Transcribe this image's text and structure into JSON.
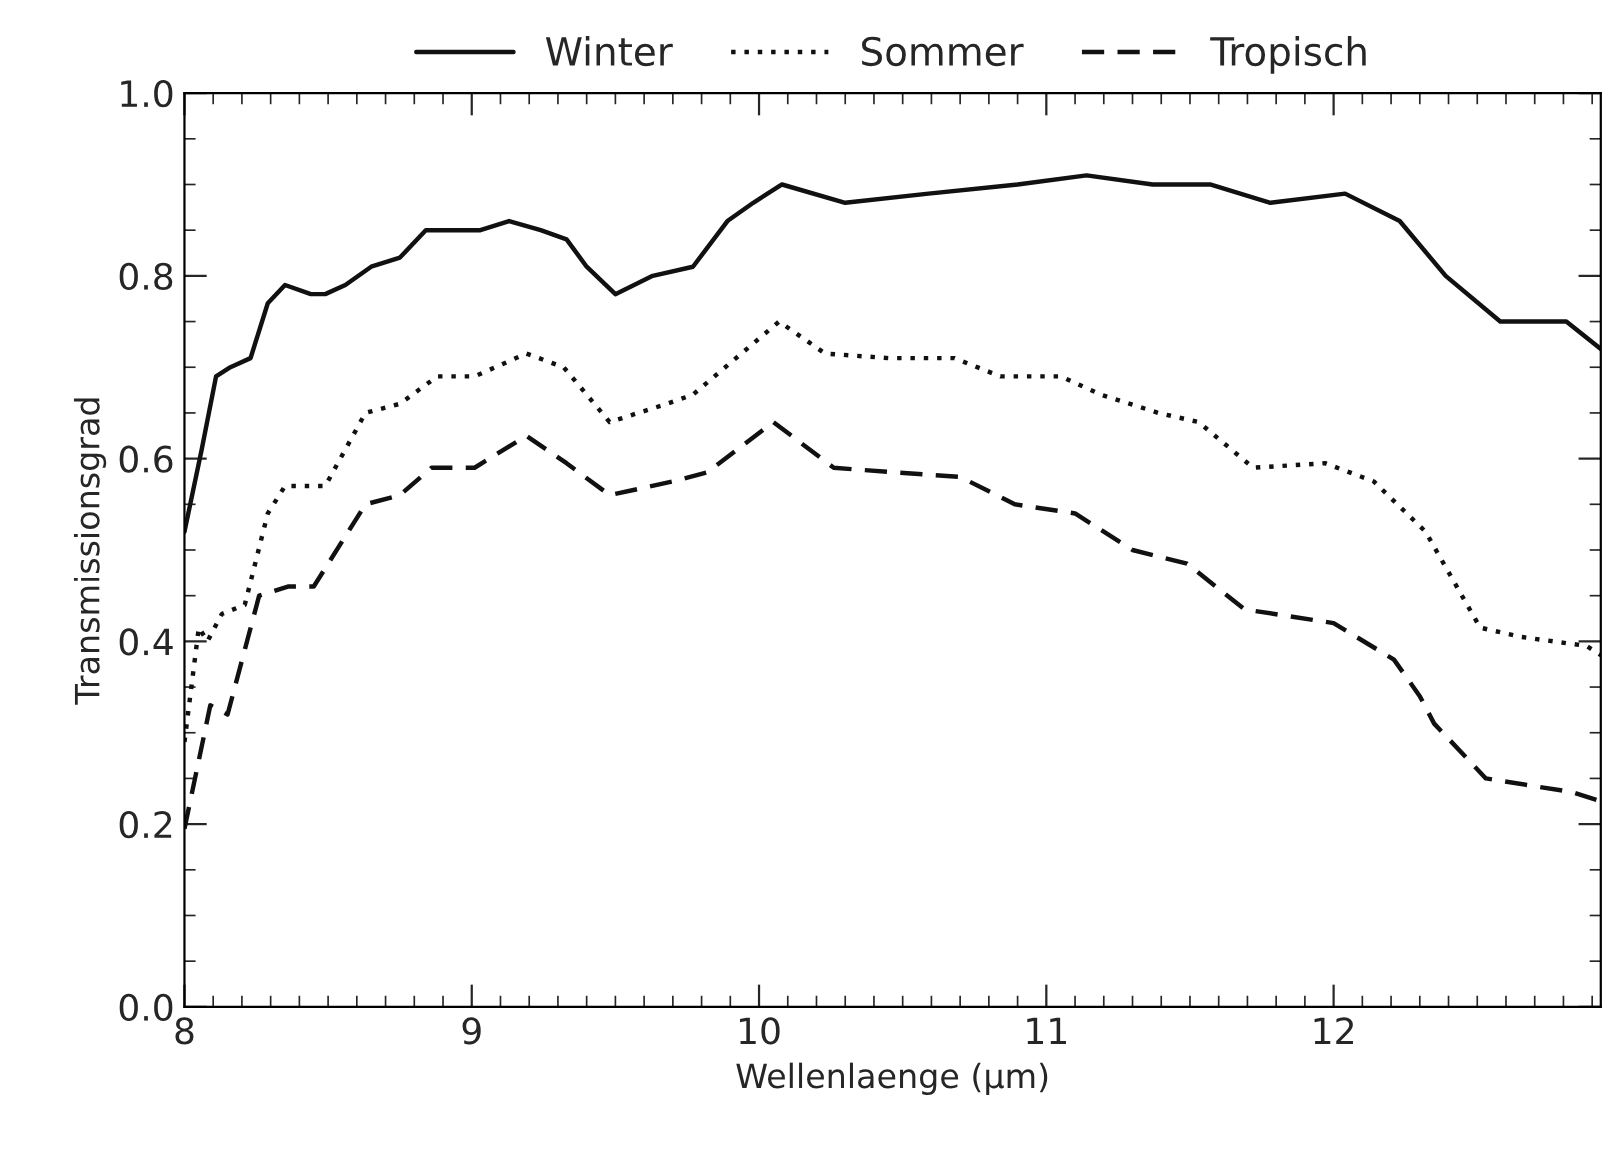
{
  "chart_data": {
    "type": "line",
    "xlabel": "Wellenlaenge (μm)",
    "ylabel": "Transmissionsgrad",
    "xlim": [
      8,
      12.93
    ],
    "xticks": [
      8,
      9,
      10,
      11,
      12
    ],
    "ylim": [
      0,
      1
    ],
    "yticks": [
      {
        "value": 0,
        "label": "0.0"
      },
      0.2,
      0.4,
      0.6,
      0.8,
      {
        "value": 1,
        "label": "1.0"
      }
    ],
    "grid": false,
    "legend": "top",
    "marker": "none",
    "series": [
      {
        "name": "Winter",
        "color": "#111111",
        "line_style": "solid",
        "x": [
          8.0,
          8.06,
          8.11,
          8.16,
          8.23,
          8.29,
          8.35,
          8.44,
          8.49,
          8.56,
          8.65,
          8.75,
          8.84,
          8.94,
          9.03,
          9.13,
          9.24,
          9.33,
          9.4,
          9.5,
          9.63,
          9.77,
          9.89,
          9.98,
          10.08,
          10.3,
          10.59,
          10.9,
          11.14,
          11.37,
          11.57,
          11.78,
          12.04,
          12.23,
          12.39,
          12.58,
          12.81,
          12.93
        ],
        "values": [
          0.52,
          0.61,
          0.69,
          0.7,
          0.71,
          0.77,
          0.79,
          0.78,
          0.78,
          0.79,
          0.81,
          0.82,
          0.85,
          0.85,
          0.85,
          0.86,
          0.85,
          0.84,
          0.81,
          0.78,
          0.8,
          0.81,
          0.86,
          0.88,
          0.9,
          0.88,
          0.89,
          0.9,
          0.91,
          0.9,
          0.9,
          0.88,
          0.89,
          0.86,
          0.8,
          0.75,
          0.75,
          0.72
        ]
      },
      {
        "name": "Sommer",
        "color": "#111111",
        "line_style": "dotted",
        "x": [
          8.0,
          8.05,
          8.08,
          8.13,
          8.21,
          8.29,
          8.35,
          8.49,
          8.63,
          8.75,
          8.88,
          9.01,
          9.19,
          9.32,
          9.48,
          9.68,
          9.77,
          10.07,
          10.23,
          10.45,
          10.68,
          10.84,
          11.05,
          11.19,
          11.39,
          11.53,
          11.72,
          11.97,
          12.14,
          12.32,
          12.51,
          12.65,
          12.88,
          12.93
        ],
        "values": [
          0.29,
          0.415,
          0.4,
          0.43,
          0.44,
          0.54,
          0.57,
          0.57,
          0.65,
          0.66,
          0.69,
          0.69,
          0.715,
          0.7,
          0.64,
          0.66,
          0.67,
          0.75,
          0.715,
          0.71,
          0.71,
          0.69,
          0.69,
          0.67,
          0.65,
          0.64,
          0.59,
          0.595,
          0.575,
          0.52,
          0.415,
          0.405,
          0.395,
          0.385
        ]
      },
      {
        "name": "Tropisch",
        "color": "#111111",
        "line_style": "dashed",
        "x": [
          8.0,
          8.09,
          8.15,
          8.26,
          8.36,
          8.45,
          8.63,
          8.75,
          8.86,
          9.01,
          9.19,
          9.33,
          9.48,
          9.7,
          9.82,
          10.05,
          10.26,
          10.47,
          10.7,
          10.89,
          11.1,
          11.3,
          11.49,
          11.69,
          12.0,
          12.21,
          12.3,
          12.35,
          12.53,
          12.83,
          12.93
        ],
        "values": [
          0.195,
          0.33,
          0.32,
          0.45,
          0.46,
          0.46,
          0.55,
          0.56,
          0.59,
          0.59,
          0.625,
          0.595,
          0.56,
          0.575,
          0.585,
          0.64,
          0.59,
          0.585,
          0.58,
          0.55,
          0.54,
          0.5,
          0.485,
          0.435,
          0.42,
          0.38,
          0.34,
          0.31,
          0.25,
          0.235,
          0.225
        ]
      }
    ]
  }
}
